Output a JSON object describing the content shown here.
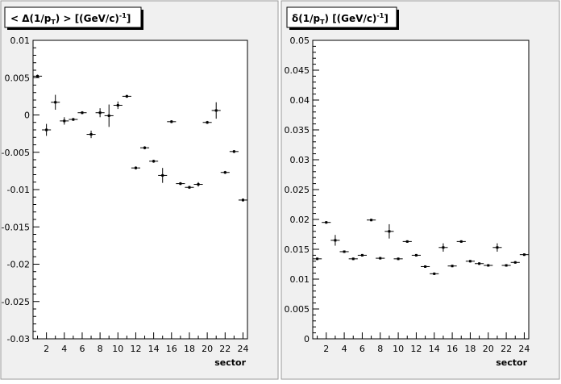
{
  "chart_data": [
    {
      "type": "scatter",
      "title_parts": {
        "pre": "< Δ(1/p",
        "sub": "T",
        "mid": ") >  [(GeV/c)",
        "sup": "-1",
        "post": "]"
      },
      "xlabel": "sector",
      "ylabel": "",
      "xlim": [
        0.5,
        24.5
      ],
      "ylim": [
        -0.03,
        0.01
      ],
      "xticks": [
        2,
        4,
        6,
        8,
        10,
        12,
        14,
        16,
        18,
        20,
        22,
        24
      ],
      "yticks": [
        -0.03,
        -0.025,
        -0.02,
        -0.015,
        -0.01,
        -0.005,
        0,
        0.005,
        0.01
      ],
      "ytick_labels": [
        "-0.03",
        "-0.025",
        "-0.02",
        "-0.015",
        "-0.01",
        "-0.005",
        "0",
        "0.005",
        "0.01"
      ],
      "grid": false,
      "series": [
        {
          "x": [
            1,
            2,
            3,
            4,
            5,
            6,
            7,
            8,
            9,
            10,
            11,
            12,
            13,
            14,
            15,
            16,
            17,
            18,
            19,
            20,
            21,
            22,
            23,
            24
          ],
          "y": [
            0.0052,
            -0.002,
            0.0017,
            -0.0008,
            -0.0006,
            0.0003,
            -0.0026,
            0.0003,
            -0.0001,
            0.0013,
            0.0025,
            -0.0071,
            -0.0044,
            -0.0062,
            -0.0081,
            -0.0009,
            -0.0092,
            -0.0097,
            -0.0093,
            -0.001,
            0.0006,
            -0.0077,
            -0.0049,
            -0.0114
          ],
          "err": [
            0.0002,
            0.0008,
            0.001,
            0.0005,
            0.0002,
            0.0002,
            0.0005,
            0.0006,
            0.0015,
            0.0005,
            0.0002,
            0.0002,
            0.0002,
            0.0002,
            0.001,
            0.0002,
            0.0002,
            0.0002,
            0.0003,
            0.0002,
            0.0011,
            0.0002,
            0.0002,
            0.0002
          ]
        }
      ]
    },
    {
      "type": "scatter",
      "title_parts": {
        "pre": "δ(1/p",
        "sub": "T",
        "mid": ")  [(GeV/c)",
        "sup": "-1",
        "post": "]"
      },
      "xlabel": "sector",
      "ylabel": "",
      "xlim": [
        0.5,
        24.5
      ],
      "ylim": [
        0,
        0.05
      ],
      "xticks": [
        2,
        4,
        6,
        8,
        10,
        12,
        14,
        16,
        18,
        20,
        22,
        24
      ],
      "yticks": [
        0,
        0.005,
        0.01,
        0.015,
        0.02,
        0.025,
        0.03,
        0.035,
        0.04,
        0.045,
        0.05
      ],
      "ytick_labels": [
        "0",
        "0.005",
        "0.01",
        "0.015",
        "0.02",
        "0.025",
        "0.03",
        "0.035",
        "0.04",
        "0.045",
        "0.05"
      ],
      "grid": false,
      "series": [
        {
          "x": [
            1,
            2,
            3,
            4,
            5,
            6,
            7,
            8,
            9,
            10,
            11,
            12,
            13,
            14,
            15,
            16,
            17,
            18,
            19,
            20,
            21,
            22,
            23,
            24
          ],
          "y": [
            0.0134,
            0.0195,
            0.0165,
            0.0146,
            0.0134,
            0.014,
            0.0199,
            0.0135,
            0.018,
            0.0134,
            0.0163,
            0.014,
            0.0121,
            0.0109,
            0.0153,
            0.0122,
            0.0163,
            0.013,
            0.0126,
            0.0123,
            0.0153,
            0.0123,
            0.0128,
            0.0141
          ],
          "err": [
            0.0002,
            0.0002,
            0.0009,
            0.0002,
            0.0002,
            0.0002,
            0.0002,
            0.0002,
            0.0012,
            0.0002,
            0.0002,
            0.0002,
            0.0002,
            0.0002,
            0.0007,
            0.0002,
            0.0002,
            0.0002,
            0.0002,
            0.0002,
            0.0007,
            0.0002,
            0.0002,
            0.0002
          ]
        }
      ]
    }
  ]
}
